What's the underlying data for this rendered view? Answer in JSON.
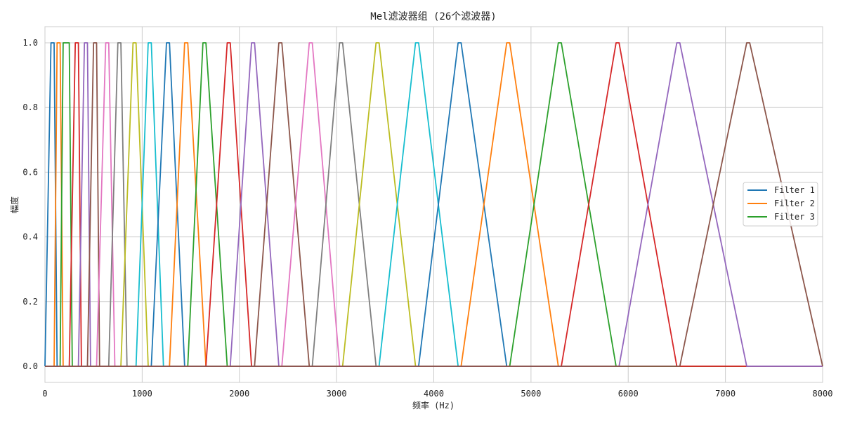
{
  "chart_data": {
    "type": "line",
    "title": "Mel滤波器组 (26个滤波器)",
    "xlabel": "频率 (Hz)",
    "ylabel": "幅度",
    "xlim": [
      0,
      8000
    ],
    "ylim": [
      -0.05,
      1.05
    ],
    "xticks": [
      0,
      1000,
      2000,
      3000,
      4000,
      5000,
      6000,
      7000,
      8000
    ],
    "xtick_labels": [
      "0",
      "1000",
      "2000",
      "3000",
      "4000",
      "5000",
      "6000",
      "7000",
      "8000"
    ],
    "yticks": [
      0.0,
      0.2,
      0.4,
      0.6,
      0.8,
      1.0
    ],
    "ytick_labels": [
      "0.0",
      "0.2",
      "0.4",
      "0.6",
      "0.8",
      "1.0"
    ],
    "grid": true,
    "legend_position": "right",
    "legend": [
      "Filter 1",
      "Filter 2",
      "Filter 3"
    ],
    "colors": [
      "#1f77b4",
      "#ff7f0e",
      "#2ca02c",
      "#d62728",
      "#9467bd",
      "#8c564b",
      "#e377c2",
      "#7f7f7f",
      "#bcbd22",
      "#17becf"
    ],
    "filters": [
      [
        0,
        62,
        94,
        125
      ],
      [
        94,
        125,
        156,
        187
      ],
      [
        156,
        187,
        250,
        281
      ],
      [
        250,
        312,
        344,
        375
      ],
      [
        344,
        406,
        437,
        469
      ],
      [
        437,
        500,
        531,
        562
      ],
      [
        531,
        625,
        656,
        719
      ],
      [
        656,
        750,
        781,
        844
      ],
      [
        781,
        906,
        937,
        1062
      ],
      [
        937,
        1062,
        1094,
        1219
      ],
      [
        1094,
        1250,
        1281,
        1437
      ],
      [
        1281,
        1437,
        1469,
        1656
      ],
      [
        1469,
        1625,
        1656,
        1875
      ],
      [
        1656,
        1875,
        1906,
        2125
      ],
      [
        1906,
        2125,
        2156,
        2406
      ],
      [
        2156,
        2406,
        2437,
        2719
      ],
      [
        2437,
        2719,
        2750,
        3031
      ],
      [
        2750,
        3031,
        3062,
        3406
      ],
      [
        3062,
        3406,
        3437,
        3812
      ],
      [
        3437,
        3812,
        3844,
        4250
      ],
      [
        3844,
        4250,
        4281,
        4750
      ],
      [
        4281,
        4750,
        4781,
        5281
      ],
      [
        4781,
        5281,
        5312,
        5875
      ],
      [
        5312,
        5875,
        5906,
        6500
      ],
      [
        5906,
        6500,
        6531,
        7219
      ],
      [
        6531,
        7219,
        7250,
        8000
      ]
    ]
  }
}
